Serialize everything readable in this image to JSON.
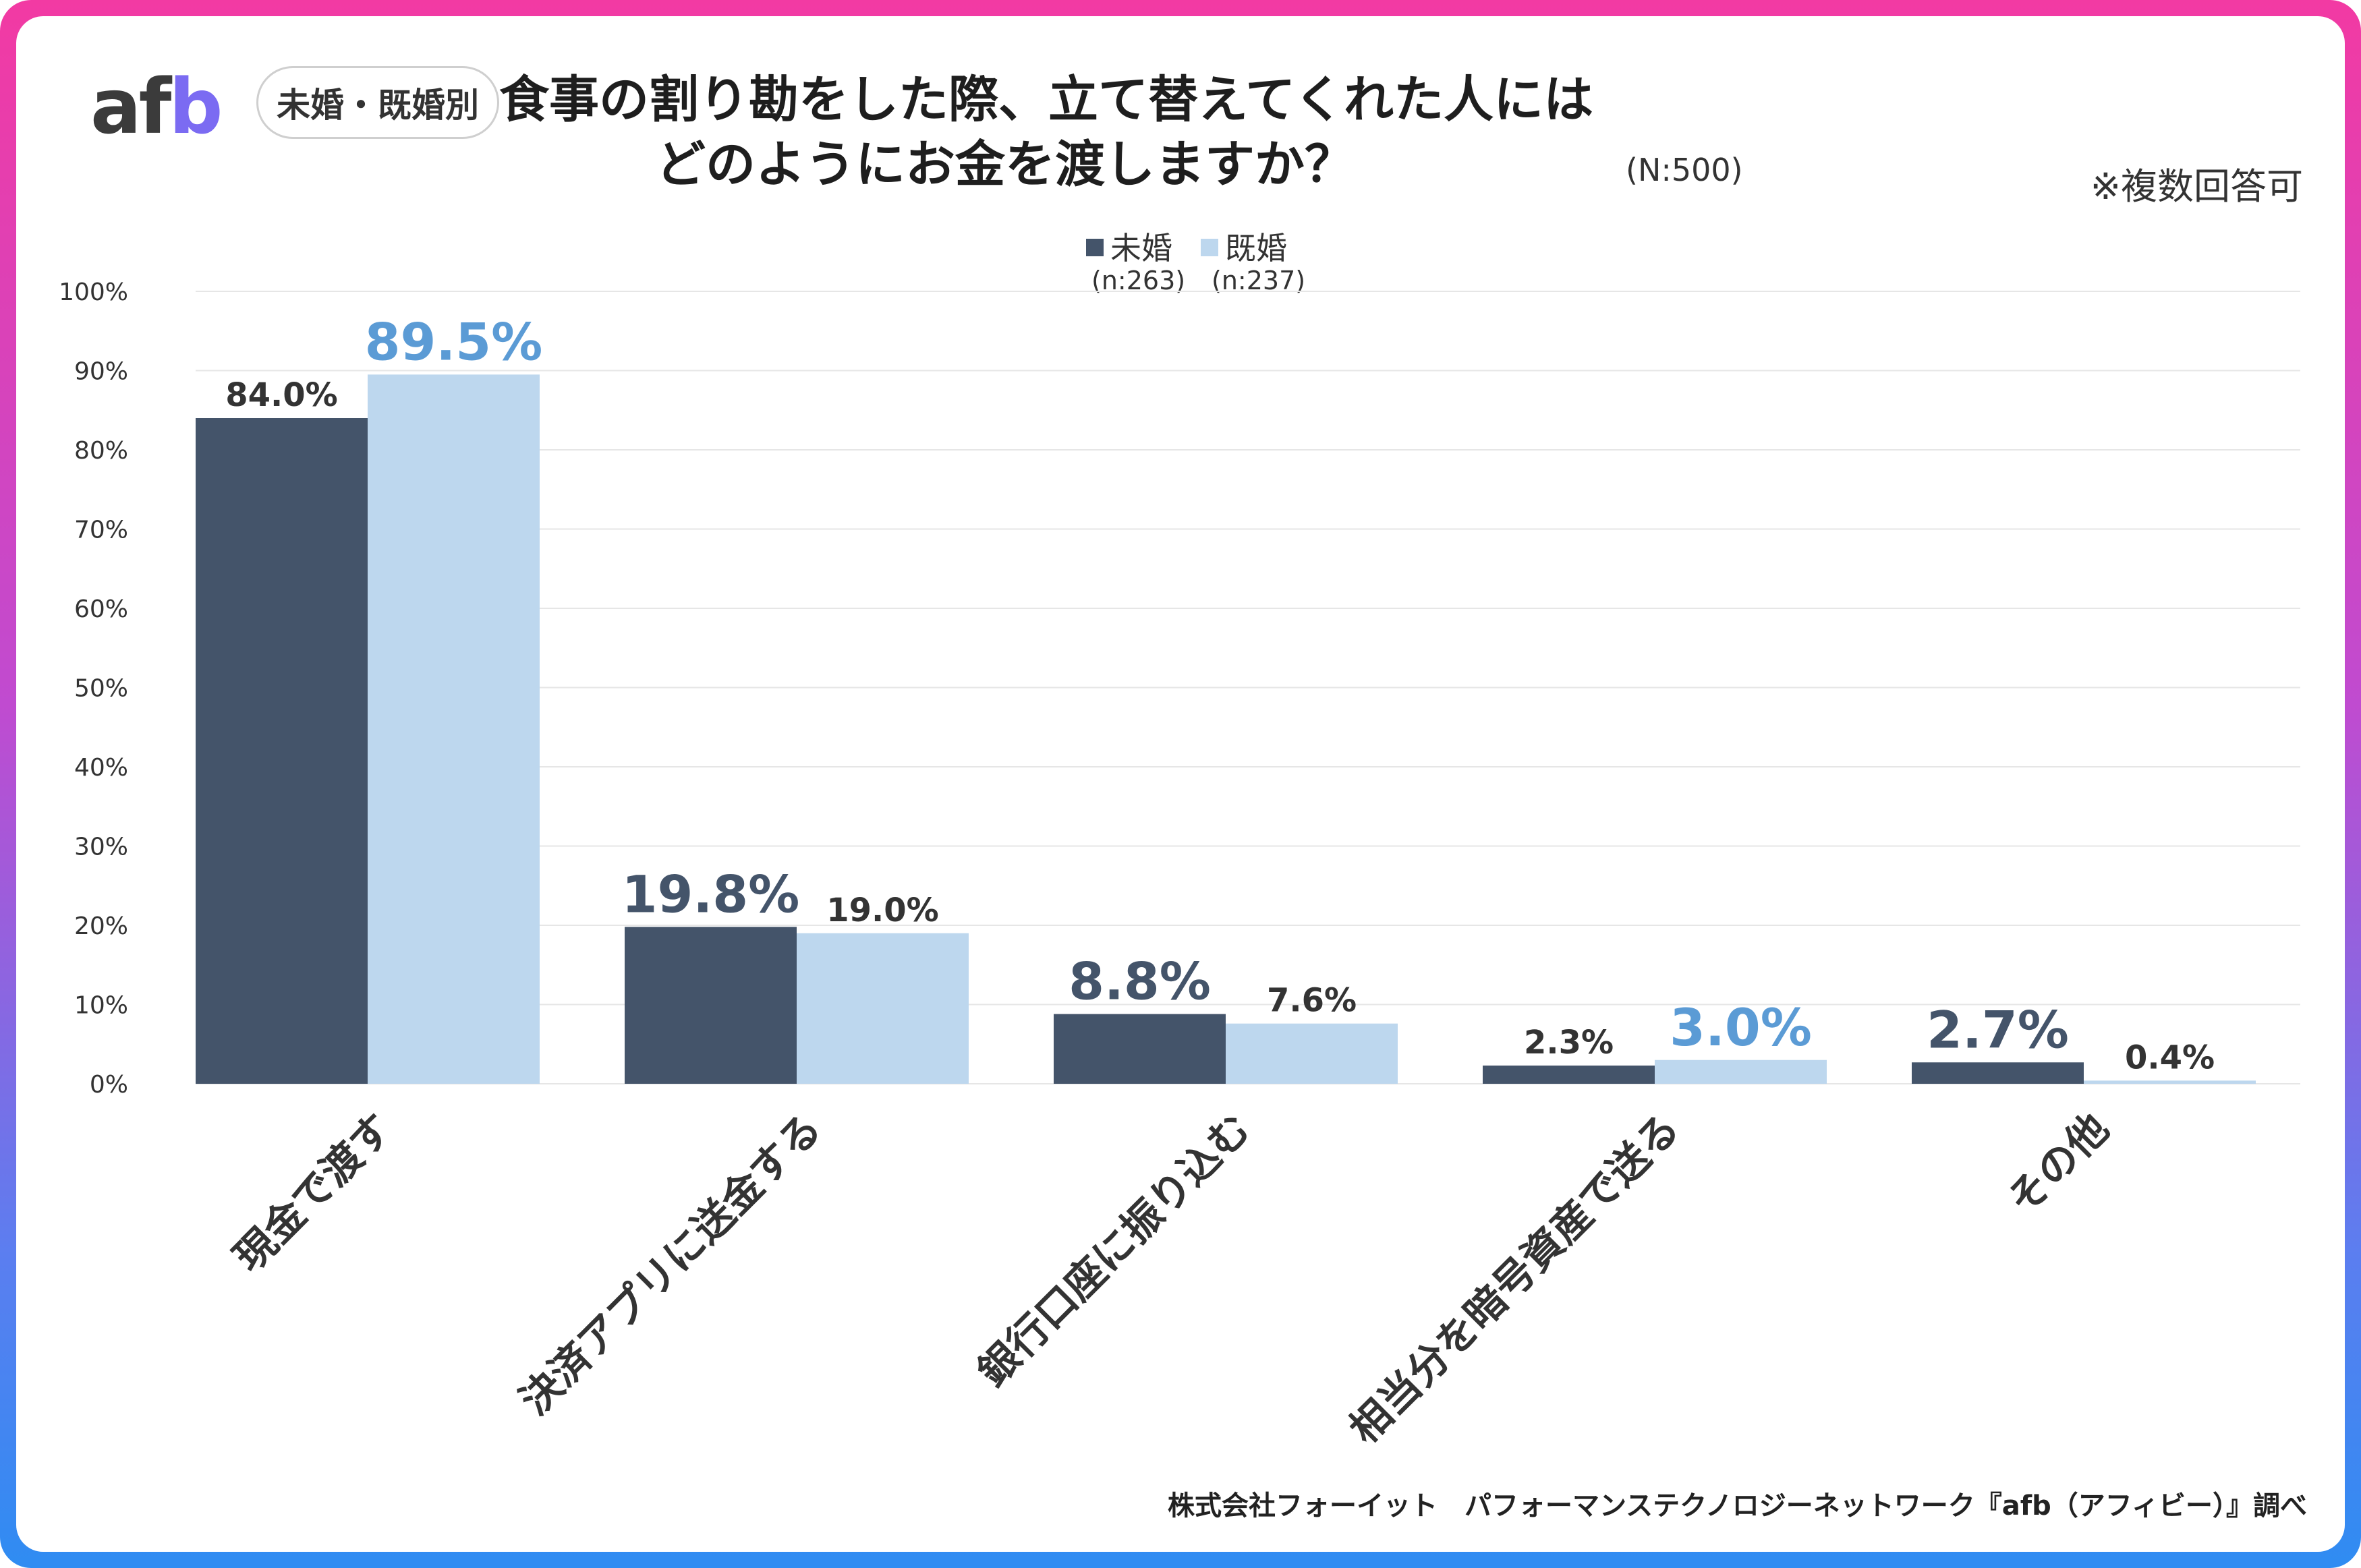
{
  "header": {
    "logo_text_a": "af",
    "logo_text_b": "b",
    "badge": "未婚・既婚別",
    "title_line1": "食事の割り勘をした際、立て替えてくれた人には",
    "title_line2": "どのようにお金を渡しますか？",
    "sample": "(N:500)",
    "note": "※複数回答可"
  },
  "legend": {
    "series1": "未婚",
    "series1_n": "(n:263)",
    "series2": "既婚",
    "series2_n": "(n:237)"
  },
  "footer": "株式会社フォーイット　パフォーマンステクノロジーネットワーク『afb（アフィビー）』調べ",
  "colors": {
    "unmarried": "#44546a",
    "married": "#bdd7ee",
    "highlight_unmarried": "#44546a",
    "highlight_married": "#5b9bd5",
    "grid": "#e6e6e6"
  },
  "chart_data": {
    "type": "bar",
    "title": "食事の割り勘をした際、立て替えてくれた人にはどのようにお金を渡しますか？",
    "categories": [
      "現金で渡す",
      "決済アプリに送金する",
      "銀行口座に振り込む",
      "相当分を暗号資産で送る",
      "その他"
    ],
    "series": [
      {
        "name": "未婚",
        "values": [
          84.0,
          19.8,
          8.8,
          2.3,
          2.7
        ],
        "labels": [
          "84.0%",
          "19.8%",
          "8.8%",
          "2.3%",
          "2.7%"
        ],
        "highlight": [
          false,
          true,
          true,
          false,
          true
        ]
      },
      {
        "name": "既婚",
        "values": [
          89.5,
          19.0,
          7.6,
          3.0,
          0.4
        ],
        "labels": [
          "89.5%",
          "19.0%",
          "7.6%",
          "3.0%",
          "0.4%"
        ],
        "highlight": [
          true,
          false,
          false,
          true,
          false
        ]
      }
    ],
    "ylim": [
      0,
      100
    ],
    "yticks": [
      "0%",
      "10%",
      "20%",
      "30%",
      "40%",
      "50%",
      "60%",
      "70%",
      "80%",
      "90%",
      "100%"
    ],
    "xlabel": "",
    "ylabel": "",
    "grid": true,
    "legend": "top-center"
  }
}
